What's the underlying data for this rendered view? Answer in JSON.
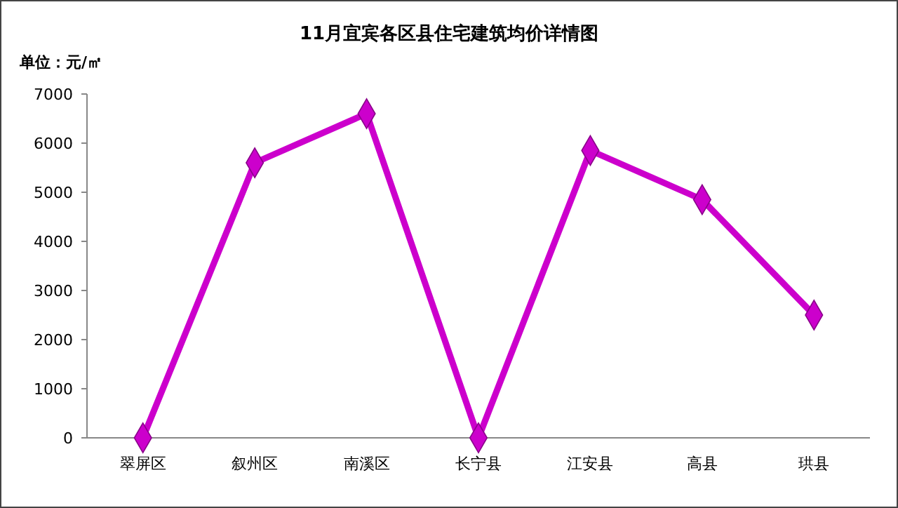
{
  "chart_data": {
    "type": "line",
    "title": "11月宜宾各区县住宅建筑均价详情图",
    "ylabel": "单位：元/㎡",
    "categories": [
      "翠屏区",
      "叙州区",
      "南溪区",
      "长宁县",
      "江安县",
      "高县",
      "珙县"
    ],
    "series": [
      {
        "color": "#cc00cc",
        "values": [
          0,
          5600,
          6600,
          0,
          5850,
          4850,
          2500
        ]
      }
    ],
    "ylim": [
      0,
      7000
    ],
    "yticks": [
      0,
      1000,
      2000,
      3000,
      4000,
      5000,
      6000,
      7000
    ],
    "grid": false,
    "marker": "diamond",
    "line_style": "solid"
  }
}
